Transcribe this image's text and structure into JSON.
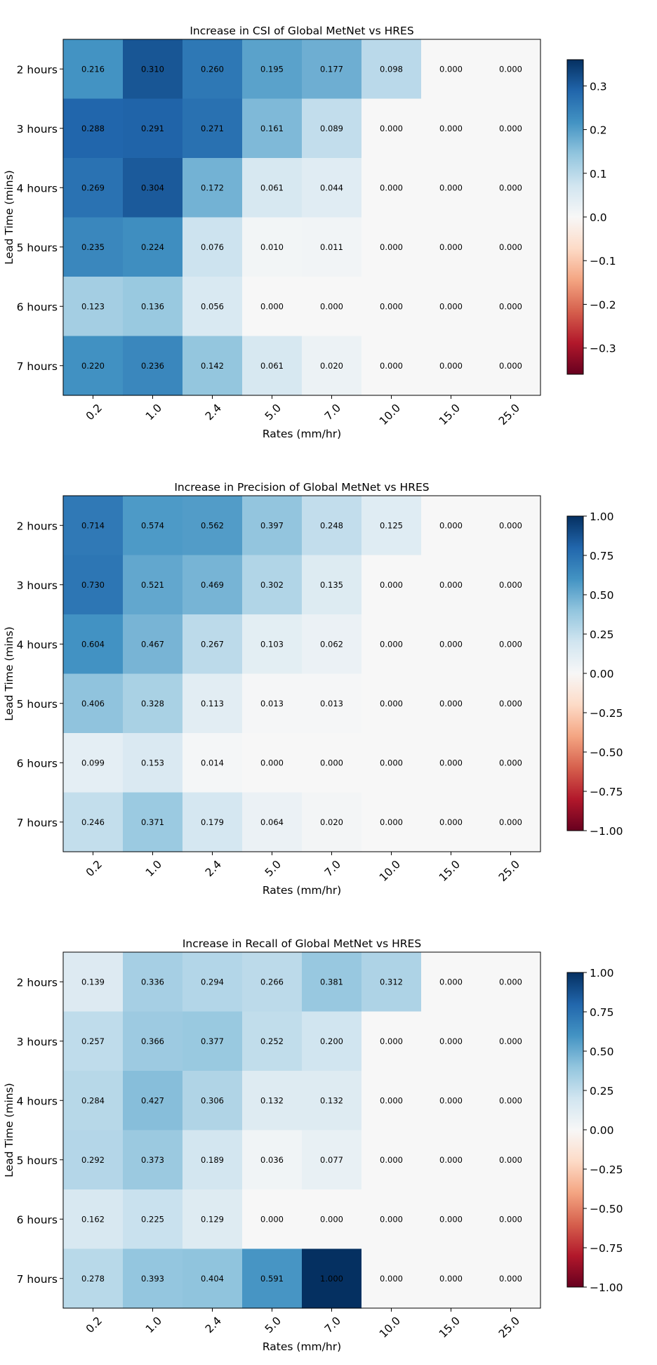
{
  "chart_data": [
    {
      "type": "heatmap",
      "title": "Increase in CSI of Global MetNet vs HRES",
      "xlabel": "Rates (mm/hr)",
      "ylabel": "Lead Time (mins)",
      "x_categories": [
        "0.2",
        "1.0",
        "2.4",
        "5.0",
        "7.0",
        "10.0",
        "15.0",
        "25.0"
      ],
      "y_categories": [
        "2 hours",
        "3 hours",
        "4 hours",
        "5 hours",
        "6 hours",
        "7 hours"
      ],
      "values": [
        [
          0.216,
          0.31,
          0.26,
          0.195,
          0.177,
          0.098,
          0.0,
          0.0
        ],
        [
          0.288,
          0.291,
          0.271,
          0.161,
          0.089,
          0.0,
          0.0,
          0.0
        ],
        [
          0.269,
          0.304,
          0.172,
          0.061,
          0.044,
          0.0,
          0.0,
          0.0
        ],
        [
          0.235,
          0.224,
          0.076,
          0.01,
          0.011,
          0.0,
          0.0,
          0.0
        ],
        [
          0.123,
          0.136,
          0.056,
          0.0,
          0.0,
          0.0,
          0.0,
          0.0
        ],
        [
          0.22,
          0.236,
          0.142,
          0.061,
          0.02,
          0.0,
          0.0,
          0.0
        ]
      ],
      "colormap": "RdBu",
      "vmin": -0.36,
      "vmax": 0.36,
      "colorbar_ticks": [
        0.3,
        0.2,
        0.1,
        0.0,
        -0.1,
        -0.2,
        -0.3
      ],
      "colorbar_tick_labels": [
        "0.3",
        "0.2",
        "0.1",
        "0.0",
        "−0.1",
        "−0.2",
        "−0.3"
      ]
    },
    {
      "type": "heatmap",
      "title": "Increase in Precision of Global MetNet vs HRES",
      "xlabel": "Rates (mm/hr)",
      "ylabel": "Lead Time (mins)",
      "x_categories": [
        "0.2",
        "1.0",
        "2.4",
        "5.0",
        "7.0",
        "10.0",
        "15.0",
        "25.0"
      ],
      "y_categories": [
        "2 hours",
        "3 hours",
        "4 hours",
        "5 hours",
        "6 hours",
        "7 hours"
      ],
      "values": [
        [
          0.714,
          0.574,
          0.562,
          0.397,
          0.248,
          0.125,
          0.0,
          0.0
        ],
        [
          0.73,
          0.521,
          0.469,
          0.302,
          0.135,
          0.0,
          0.0,
          0.0
        ],
        [
          0.604,
          0.467,
          0.267,
          0.103,
          0.062,
          0.0,
          0.0,
          0.0
        ],
        [
          0.406,
          0.328,
          0.113,
          0.013,
          0.013,
          0.0,
          0.0,
          0.0
        ],
        [
          0.099,
          0.153,
          0.014,
          0.0,
          0.0,
          0.0,
          0.0,
          0.0
        ],
        [
          0.246,
          0.371,
          0.179,
          0.064,
          0.02,
          0.0,
          0.0,
          0.0
        ]
      ],
      "colormap": "RdBu",
      "vmin": -1.0,
      "vmax": 1.0,
      "colorbar_ticks": [
        1.0,
        0.75,
        0.5,
        0.25,
        0.0,
        -0.25,
        -0.5,
        -0.75,
        -1.0
      ],
      "colorbar_tick_labels": [
        "1.00",
        "0.75",
        "0.50",
        "0.25",
        "0.00",
        "−0.25",
        "−0.50",
        "−0.75",
        "−1.00"
      ]
    },
    {
      "type": "heatmap",
      "title": "Increase in Recall of Global MetNet vs HRES",
      "xlabel": "Rates (mm/hr)",
      "ylabel": "Lead Time (mins)",
      "x_categories": [
        "0.2",
        "1.0",
        "2.4",
        "5.0",
        "7.0",
        "10.0",
        "15.0",
        "25.0"
      ],
      "y_categories": [
        "2 hours",
        "3 hours",
        "4 hours",
        "5 hours",
        "6 hours",
        "7 hours"
      ],
      "values": [
        [
          0.139,
          0.336,
          0.294,
          0.266,
          0.381,
          0.312,
          0.0,
          0.0
        ],
        [
          0.257,
          0.366,
          0.377,
          0.252,
          0.2,
          0.0,
          0.0,
          0.0
        ],
        [
          0.284,
          0.427,
          0.306,
          0.132,
          0.132,
          0.0,
          0.0,
          0.0
        ],
        [
          0.292,
          0.373,
          0.189,
          0.036,
          0.077,
          0.0,
          0.0,
          0.0
        ],
        [
          0.162,
          0.225,
          0.129,
          0.0,
          0.0,
          0.0,
          0.0,
          0.0
        ],
        [
          0.278,
          0.393,
          0.404,
          0.591,
          1.0,
          0.0,
          0.0,
          0.0
        ]
      ],
      "colormap": "RdBu",
      "vmin": -1.0,
      "vmax": 1.0,
      "colorbar_ticks": [
        1.0,
        0.75,
        0.5,
        0.25,
        0.0,
        -0.25,
        -0.5,
        -0.75,
        -1.0
      ],
      "colorbar_tick_labels": [
        "1.00",
        "0.75",
        "0.50",
        "0.25",
        "0.00",
        "−0.25",
        "−0.50",
        "−0.75",
        "−1.00"
      ]
    }
  ]
}
